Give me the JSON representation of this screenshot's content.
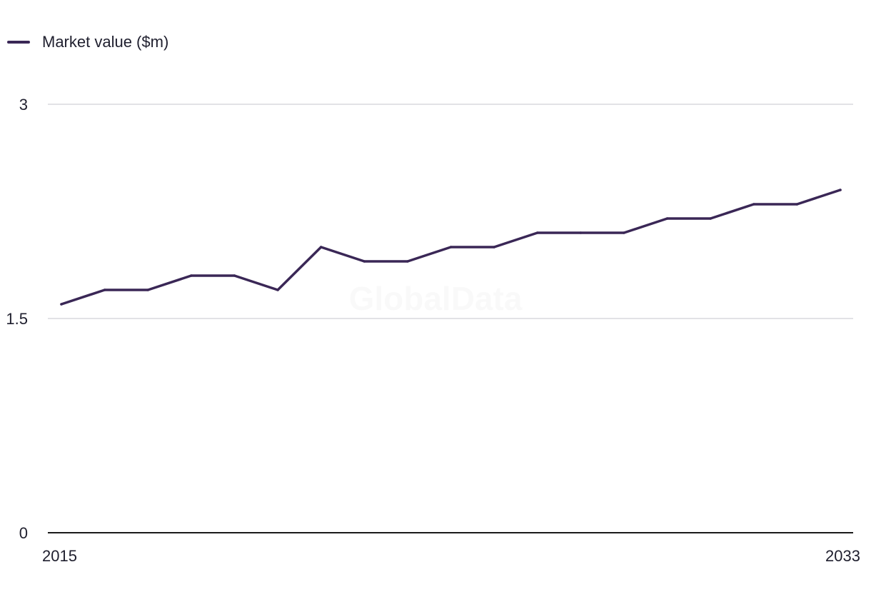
{
  "legend": {
    "label": "Market value ($m)"
  },
  "watermark": "GlobalData",
  "colors": {
    "series": "#3a2756",
    "grid": "#d9d9de",
    "axis": "#1a1a1a",
    "text": "#1f1f2e"
  },
  "chart_data": {
    "type": "line",
    "x": [
      2015,
      2016,
      2017,
      2018,
      2019,
      2020,
      2021,
      2022,
      2023,
      2024,
      2025,
      2026,
      2027,
      2028,
      2029,
      2030,
      2031,
      2032,
      2033
    ],
    "series": [
      {
        "name": "Market value ($m)",
        "values": [
          1.6,
          1.7,
          1.7,
          1.8,
          1.8,
          1.7,
          2.0,
          1.9,
          1.9,
          2.0,
          2.0,
          2.1,
          2.1,
          2.1,
          2.2,
          2.2,
          2.3,
          2.3,
          2.4
        ]
      }
    ],
    "xticks": [
      "2015",
      "2033"
    ],
    "yticks": [
      "0",
      "1.5",
      "3"
    ],
    "ylim": [
      0,
      3
    ],
    "grid": true,
    "legend_position": "top-left"
  }
}
